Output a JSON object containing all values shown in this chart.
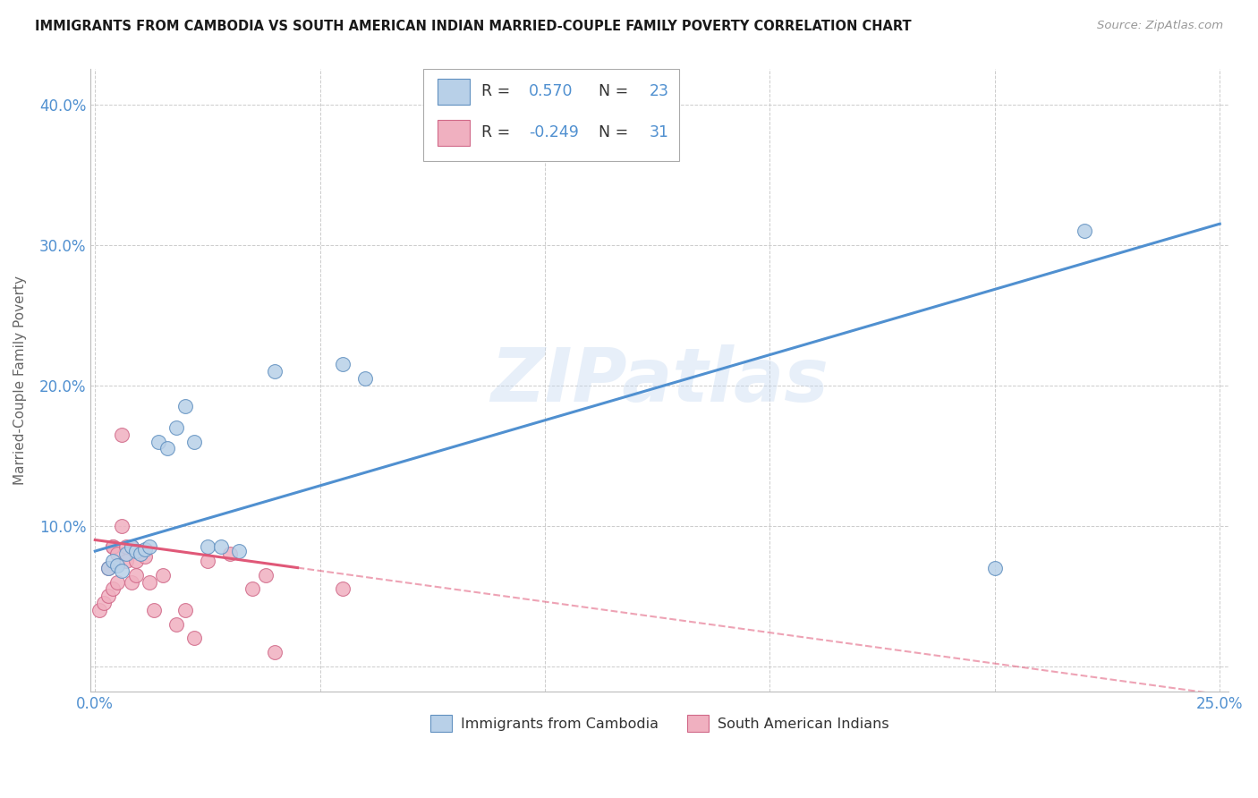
{
  "title": "IMMIGRANTS FROM CAMBODIA VS SOUTH AMERICAN INDIAN MARRIED-COUPLE FAMILY POVERTY CORRELATION CHART",
  "source": "Source: ZipAtlas.com",
  "ylabel": "Married-Couple Family Poverty",
  "xlim": [
    -0.001,
    0.252
  ],
  "ylim": [
    -0.018,
    0.425
  ],
  "x_ticks": [
    0.0,
    0.05,
    0.1,
    0.15,
    0.2,
    0.25
  ],
  "x_tick_labels": [
    "0.0%",
    "",
    "",
    "",
    "",
    "25.0%"
  ],
  "y_ticks": [
    0.0,
    0.1,
    0.2,
    0.3,
    0.4
  ],
  "y_tick_labels": [
    "",
    "10.0%",
    "20.0%",
    "30.0%",
    "40.0%"
  ],
  "R_cambodia": 0.57,
  "N_cambodia": 23,
  "R_south_american": -0.249,
  "N_south_american": 31,
  "cambodia_color": "#b8d0e8",
  "cambodia_edge_color": "#6090c0",
  "south_american_color": "#f0b0c0",
  "south_american_edge_color": "#d06888",
  "cambodia_line_color": "#5090d0",
  "south_american_line_color": "#e05878",
  "watermark": "ZIPatlas",
  "legend_labels": [
    "Immigrants from Cambodia",
    "South American Indians"
  ],
  "cambodia_x": [
    0.003,
    0.004,
    0.005,
    0.006,
    0.007,
    0.008,
    0.009,
    0.01,
    0.011,
    0.012,
    0.014,
    0.016,
    0.018,
    0.02,
    0.022,
    0.025,
    0.028,
    0.032,
    0.04,
    0.055,
    0.06,
    0.2,
    0.22
  ],
  "cambodia_y": [
    0.07,
    0.075,
    0.072,
    0.068,
    0.08,
    0.085,
    0.082,
    0.08,
    0.083,
    0.085,
    0.16,
    0.155,
    0.17,
    0.185,
    0.16,
    0.085,
    0.085,
    0.082,
    0.21,
    0.215,
    0.205,
    0.07,
    0.31
  ],
  "south_american_x": [
    0.001,
    0.002,
    0.003,
    0.003,
    0.004,
    0.004,
    0.004,
    0.005,
    0.005,
    0.006,
    0.006,
    0.007,
    0.007,
    0.008,
    0.008,
    0.009,
    0.009,
    0.01,
    0.011,
    0.012,
    0.013,
    0.015,
    0.018,
    0.02,
    0.022,
    0.025,
    0.03,
    0.035,
    0.038,
    0.04,
    0.055
  ],
  "south_american_y": [
    0.04,
    0.045,
    0.07,
    0.05,
    0.085,
    0.085,
    0.055,
    0.08,
    0.06,
    0.165,
    0.1,
    0.075,
    0.085,
    0.085,
    0.06,
    0.075,
    0.065,
    0.082,
    0.078,
    0.06,
    0.04,
    0.065,
    0.03,
    0.04,
    0.02,
    0.075,
    0.08,
    0.055,
    0.065,
    0.01,
    0.055
  ],
  "background_color": "#ffffff",
  "grid_color": "#cccccc",
  "solid_line_end_south": 0.045
}
